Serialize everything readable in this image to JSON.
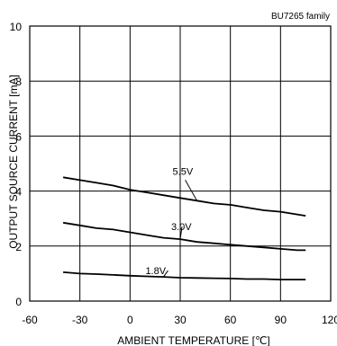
{
  "chart_data": {
    "type": "line",
    "annotation": "BU7265 family",
    "xlabel": "AMBIENT TEMPERATURE [℃]",
    "ylabel": "OUTPUT SOURCE CURRENT [mA]",
    "xlim": [
      -60,
      120
    ],
    "ylim": [
      0,
      10
    ],
    "xticks": [
      -60,
      -30,
      0,
      30,
      60,
      90,
      120
    ],
    "yticks": [
      0,
      2,
      4,
      6,
      8,
      10
    ],
    "grid": true,
    "series": [
      {
        "name": "5.5V",
        "x": [
          -40,
          -30,
          -20,
          -10,
          0,
          10,
          20,
          30,
          40,
          50,
          60,
          70,
          80,
          90,
          100,
          105
        ],
        "y": [
          4.5,
          4.4,
          4.3,
          4.2,
          4.05,
          3.95,
          3.85,
          3.75,
          3.65,
          3.55,
          3.5,
          3.4,
          3.3,
          3.25,
          3.15,
          3.1
        ]
      },
      {
        "name": "3.0V",
        "x": [
          -40,
          -30,
          -20,
          -10,
          0,
          10,
          20,
          30,
          40,
          50,
          60,
          70,
          80,
          90,
          100,
          105
        ],
        "y": [
          2.85,
          2.75,
          2.65,
          2.6,
          2.5,
          2.4,
          2.3,
          2.25,
          2.15,
          2.1,
          2.05,
          2.0,
          1.95,
          1.9,
          1.85,
          1.85
        ]
      },
      {
        "name": "1.8V",
        "x": [
          -40,
          -30,
          -20,
          -10,
          0,
          10,
          20,
          30,
          40,
          50,
          60,
          70,
          80,
          90,
          100,
          105
        ],
        "y": [
          1.05,
          1.0,
          0.98,
          0.95,
          0.92,
          0.9,
          0.88,
          0.85,
          0.84,
          0.83,
          0.82,
          0.8,
          0.8,
          0.78,
          0.78,
          0.78
        ]
      }
    ]
  }
}
